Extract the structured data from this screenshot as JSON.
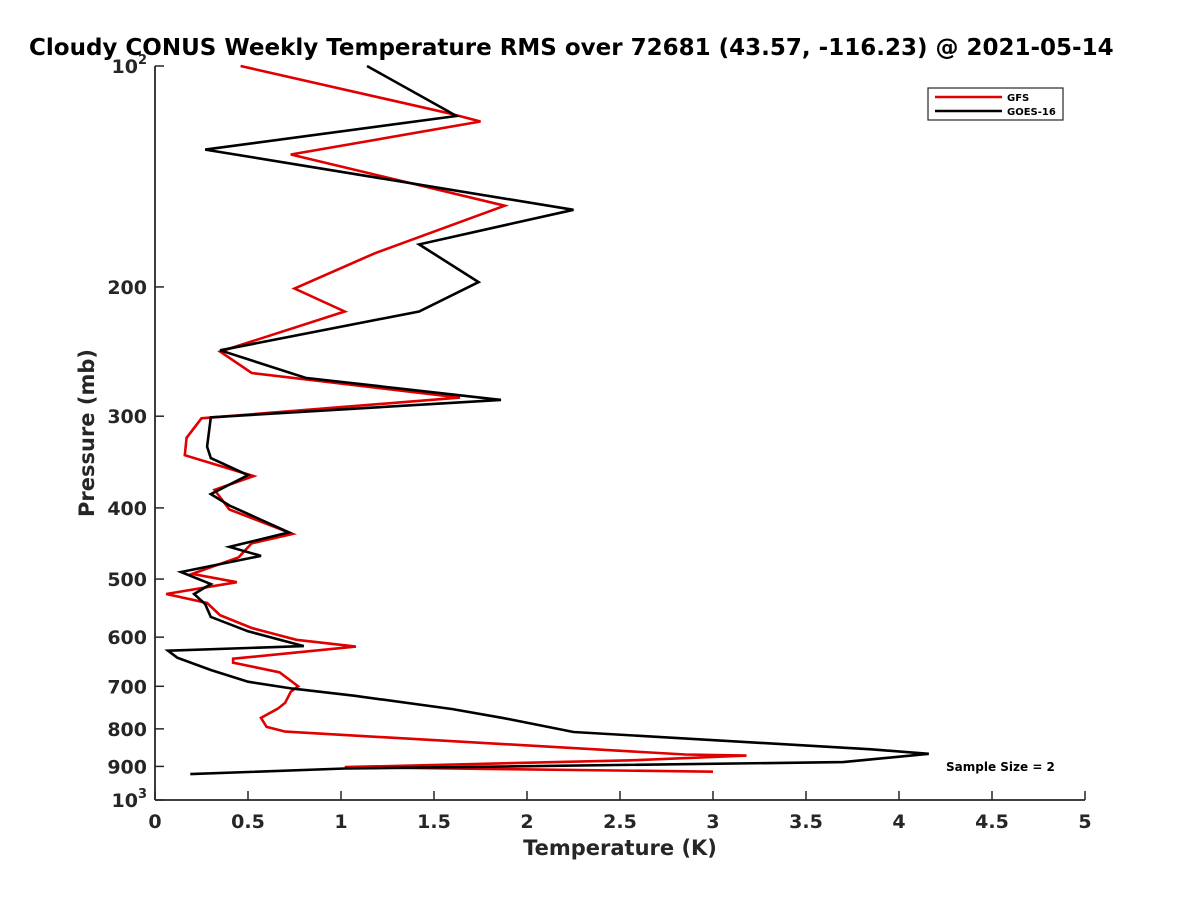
{
  "chart_data": {
    "type": "line",
    "title": "Cloudy CONUS Weekly Temperature RMS over 72681 (43.57, -116.23) @ 2021-05-14",
    "xlabel": "Temperature (K)",
    "ylabel": "Pressure (mb)",
    "xlim": [
      0,
      5
    ],
    "ylim": [
      100,
      1000
    ],
    "y_scale": "log",
    "y_reversed": true,
    "x_ticks": [
      "0",
      "0.5",
      "1",
      "1.5",
      "2",
      "2.5",
      "3",
      "3.5",
      "4",
      "4.5",
      "5"
    ],
    "y_ticks": [
      {
        "value": 100,
        "base": "10",
        "exp": "2"
      },
      {
        "value": 200,
        "label": "200"
      },
      {
        "value": 300,
        "label": "300"
      },
      {
        "value": 400,
        "label": "400"
      },
      {
        "value": 500,
        "label": "500"
      },
      {
        "value": 600,
        "label": "600"
      },
      {
        "value": 700,
        "label": "700"
      },
      {
        "value": 800,
        "label": "800"
      },
      {
        "value": 900,
        "label": "900"
      },
      {
        "value": 1000,
        "base": "10",
        "exp": "3"
      }
    ],
    "grid": false,
    "legend_position": "top-right",
    "annotation": "Sample Size = 2",
    "series": [
      {
        "name": "GFS",
        "color": "#e00000",
        "points": [
          [
            0.46,
            100
          ],
          [
            1.58,
            116
          ],
          [
            1.75,
            119
          ],
          [
            0.73,
            132
          ],
          [
            1.88,
            155
          ],
          [
            1.18,
            180
          ],
          [
            0.75,
            201
          ],
          [
            1.02,
            216
          ],
          [
            0.35,
            245
          ],
          [
            0.52,
            262
          ],
          [
            1.64,
            283
          ],
          [
            0.25,
            302
          ],
          [
            0.17,
            321
          ],
          [
            0.16,
            339
          ],
          [
            0.53,
            362
          ],
          [
            0.32,
            378
          ],
          [
            0.4,
            402
          ],
          [
            0.74,
            434
          ],
          [
            0.52,
            447
          ],
          [
            0.45,
            467
          ],
          [
            0.2,
            492
          ],
          [
            0.44,
            505
          ],
          [
            0.06,
            524
          ],
          [
            0.28,
            539
          ],
          [
            0.35,
            560
          ],
          [
            0.52,
            583
          ],
          [
            0.76,
            605
          ],
          [
            1.08,
            618
          ],
          [
            0.42,
            642
          ],
          [
            0.42,
            650
          ],
          [
            0.67,
            670
          ],
          [
            0.77,
            700
          ],
          [
            0.73,
            712
          ],
          [
            0.7,
            737
          ],
          [
            0.66,
            751
          ],
          [
            0.57,
            773
          ],
          [
            0.6,
            795
          ],
          [
            0.7,
            807
          ],
          [
            2.85,
            867
          ],
          [
            3.18,
            870
          ],
          [
            2.56,
            883
          ],
          [
            1.02,
            902
          ],
          [
            3.0,
            915
          ]
        ]
      },
      {
        "name": "GOES-16",
        "color": "#000000",
        "points": [
          [
            1.14,
            100
          ],
          [
            1.57,
            115
          ],
          [
            1.62,
            117
          ],
          [
            0.27,
            130
          ],
          [
            2.25,
            157
          ],
          [
            1.42,
            175
          ],
          [
            1.74,
            197
          ],
          [
            1.42,
            216
          ],
          [
            0.35,
            244
          ],
          [
            0.81,
            266
          ],
          [
            1.86,
            285
          ],
          [
            0.3,
            301
          ],
          [
            0.28,
            330
          ],
          [
            0.3,
            342
          ],
          [
            0.5,
            361
          ],
          [
            0.3,
            383
          ],
          [
            0.4,
            397
          ],
          [
            0.72,
            432
          ],
          [
            0.4,
            452
          ],
          [
            0.57,
            465
          ],
          [
            0.14,
            489
          ],
          [
            0.3,
            508
          ],
          [
            0.21,
            524
          ],
          [
            0.27,
            541
          ],
          [
            0.3,
            563
          ],
          [
            0.5,
            589
          ],
          [
            0.8,
            617
          ],
          [
            0.07,
            626
          ],
          [
            0.12,
            640
          ],
          [
            0.3,
            665
          ],
          [
            0.5,
            690
          ],
          [
            0.74,
            705
          ],
          [
            1.07,
            721
          ],
          [
            1.6,
            752
          ],
          [
            1.88,
            774
          ],
          [
            2.25,
            808
          ],
          [
            3.85,
            853
          ],
          [
            4.16,
            865
          ],
          [
            3.7,
            888
          ],
          [
            1.02,
            906
          ],
          [
            0.19,
            922
          ]
        ]
      }
    ]
  }
}
